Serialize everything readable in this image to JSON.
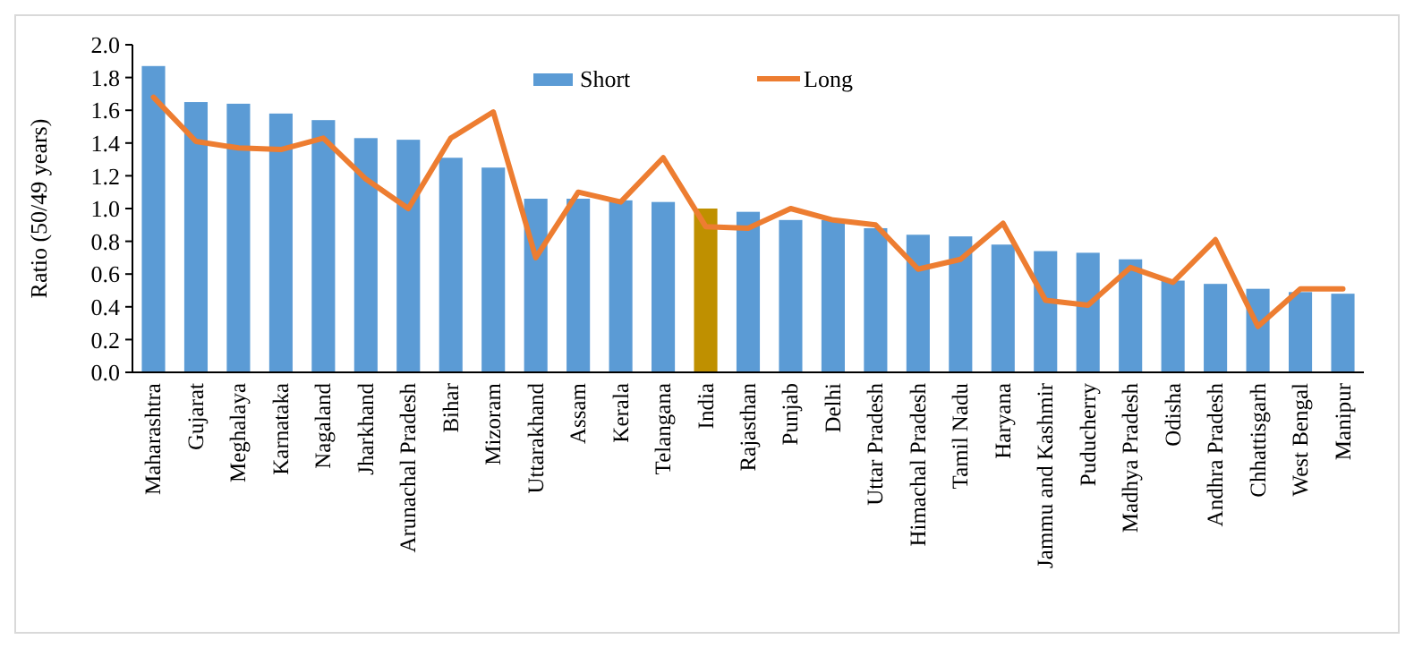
{
  "chart_data": {
    "type": "bar",
    "ylabel": "Ratio (50/49 years)",
    "categories": [
      "Maharashtra",
      "Gujarat",
      "Meghalaya",
      "Karnataka",
      "Nagaland",
      "Jharkhand",
      "Arunachal Pradesh",
      "Bihar",
      "Mizoram",
      "Uttarakhand",
      "Assam",
      "Kerala",
      "Telangana",
      "India",
      "Rajasthan",
      "Punjab",
      "Delhi",
      "Uttar Pradesh",
      "Himachal Pradesh",
      "Tamil Nadu",
      "Haryana",
      "Jammu and Kashmir",
      "Puducherry",
      "Madhya Pradesh",
      "Odisha",
      "Andhra Pradesh",
      "Chhattisgarh",
      "West Bengal",
      "Manipur"
    ],
    "series": [
      {
        "name": "Short",
        "color": "#5b9bd5",
        "colors": [
          "#5b9bd5",
          "#5b9bd5",
          "#5b9bd5",
          "#5b9bd5",
          "#5b9bd5",
          "#5b9bd5",
          "#5b9bd5",
          "#5b9bd5",
          "#5b9bd5",
          "#5b9bd5",
          "#5b9bd5",
          "#5b9bd5",
          "#5b9bd5",
          "#bf9000",
          "#5b9bd5",
          "#5b9bd5",
          "#5b9bd5",
          "#5b9bd5",
          "#5b9bd5",
          "#5b9bd5",
          "#5b9bd5",
          "#5b9bd5",
          "#5b9bd5",
          "#5b9bd5",
          "#5b9bd5",
          "#5b9bd5",
          "#5b9bd5",
          "#5b9bd5",
          "#5b9bd5"
        ],
        "values": [
          1.87,
          1.65,
          1.64,
          1.58,
          1.54,
          1.43,
          1.42,
          1.31,
          1.25,
          1.06,
          1.06,
          1.05,
          1.04,
          1.0,
          0.98,
          0.93,
          0.93,
          0.88,
          0.84,
          0.83,
          0.78,
          0.74,
          0.73,
          0.69,
          0.56,
          0.54,
          0.51,
          0.49,
          0.48
        ]
      },
      {
        "name": "Long",
        "type": "line",
        "color": "#ed7d31",
        "values": [
          1.68,
          1.41,
          1.37,
          1.36,
          1.43,
          1.18,
          1.0,
          1.43,
          1.59,
          0.7,
          1.1,
          1.04,
          1.31,
          0.89,
          0.88,
          1.0,
          0.93,
          0.9,
          0.63,
          0.69,
          0.91,
          0.44,
          0.41,
          0.64,
          0.55,
          0.81,
          0.28,
          0.51,
          0.51
        ]
      }
    ],
    "ylim": [
      0,
      2
    ],
    "yticks": [
      {
        "value": 0,
        "label": "0.0"
      },
      {
        "value": 0.2,
        "label": "0.2"
      },
      {
        "value": 0.4,
        "label": "0.4"
      },
      {
        "value": 0.6,
        "label": "0.6"
      },
      {
        "value": 0.8,
        "label": "0.8"
      },
      {
        "value": 1,
        "label": "1.0"
      },
      {
        "value": 1.2,
        "label": "1.2"
      },
      {
        "value": 1.4,
        "label": "1.4"
      },
      {
        "value": 1.6,
        "label": "1.6"
      },
      {
        "value": 1.8,
        "label": "1.8"
      },
      {
        "value": 2,
        "label": "2.0"
      }
    ],
    "legend": "top",
    "marker": "none",
    "line_style": "solid"
  }
}
